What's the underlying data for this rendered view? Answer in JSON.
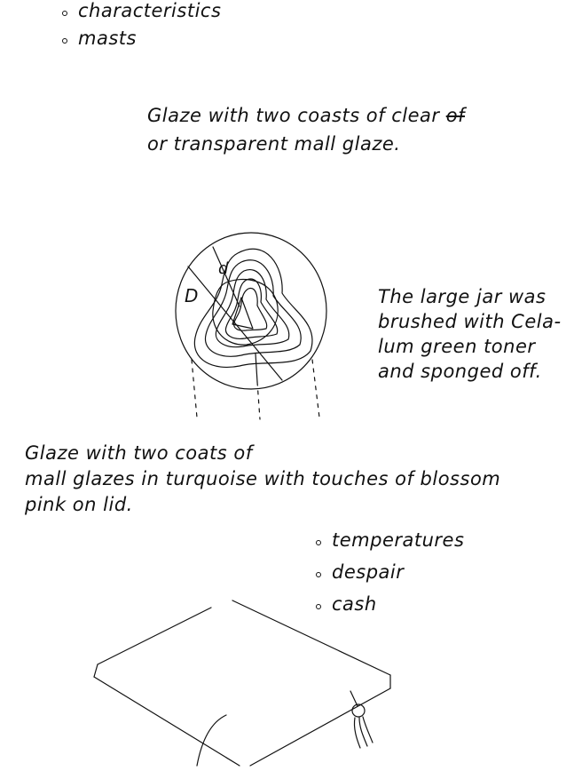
{
  "lists": {
    "top": [
      "characteristics",
      "masts"
    ],
    "bottom": [
      "temperatures",
      "despair",
      "cash"
    ]
  },
  "paragraphs": {
    "clear_glaze": {
      "line1": "Glaze with two coasts of clear",
      "line1_struck": "of",
      "line2": "or transparent mall glaze."
    },
    "jar_note": {
      "lines": [
        "The large jar was",
        "brushed with Cela-",
        "lum green toner",
        "and sponged off."
      ]
    },
    "mall_glaze": {
      "lines": [
        "Glaze with two coats of",
        "mall glazes in turquoise with touches of blossom",
        "pink on lid."
      ]
    }
  },
  "sketch_labels": {
    "left_mark": "D",
    "top_mark": "d"
  },
  "colors": {
    "ink": "#111111",
    "paper": "#ffffff"
  }
}
